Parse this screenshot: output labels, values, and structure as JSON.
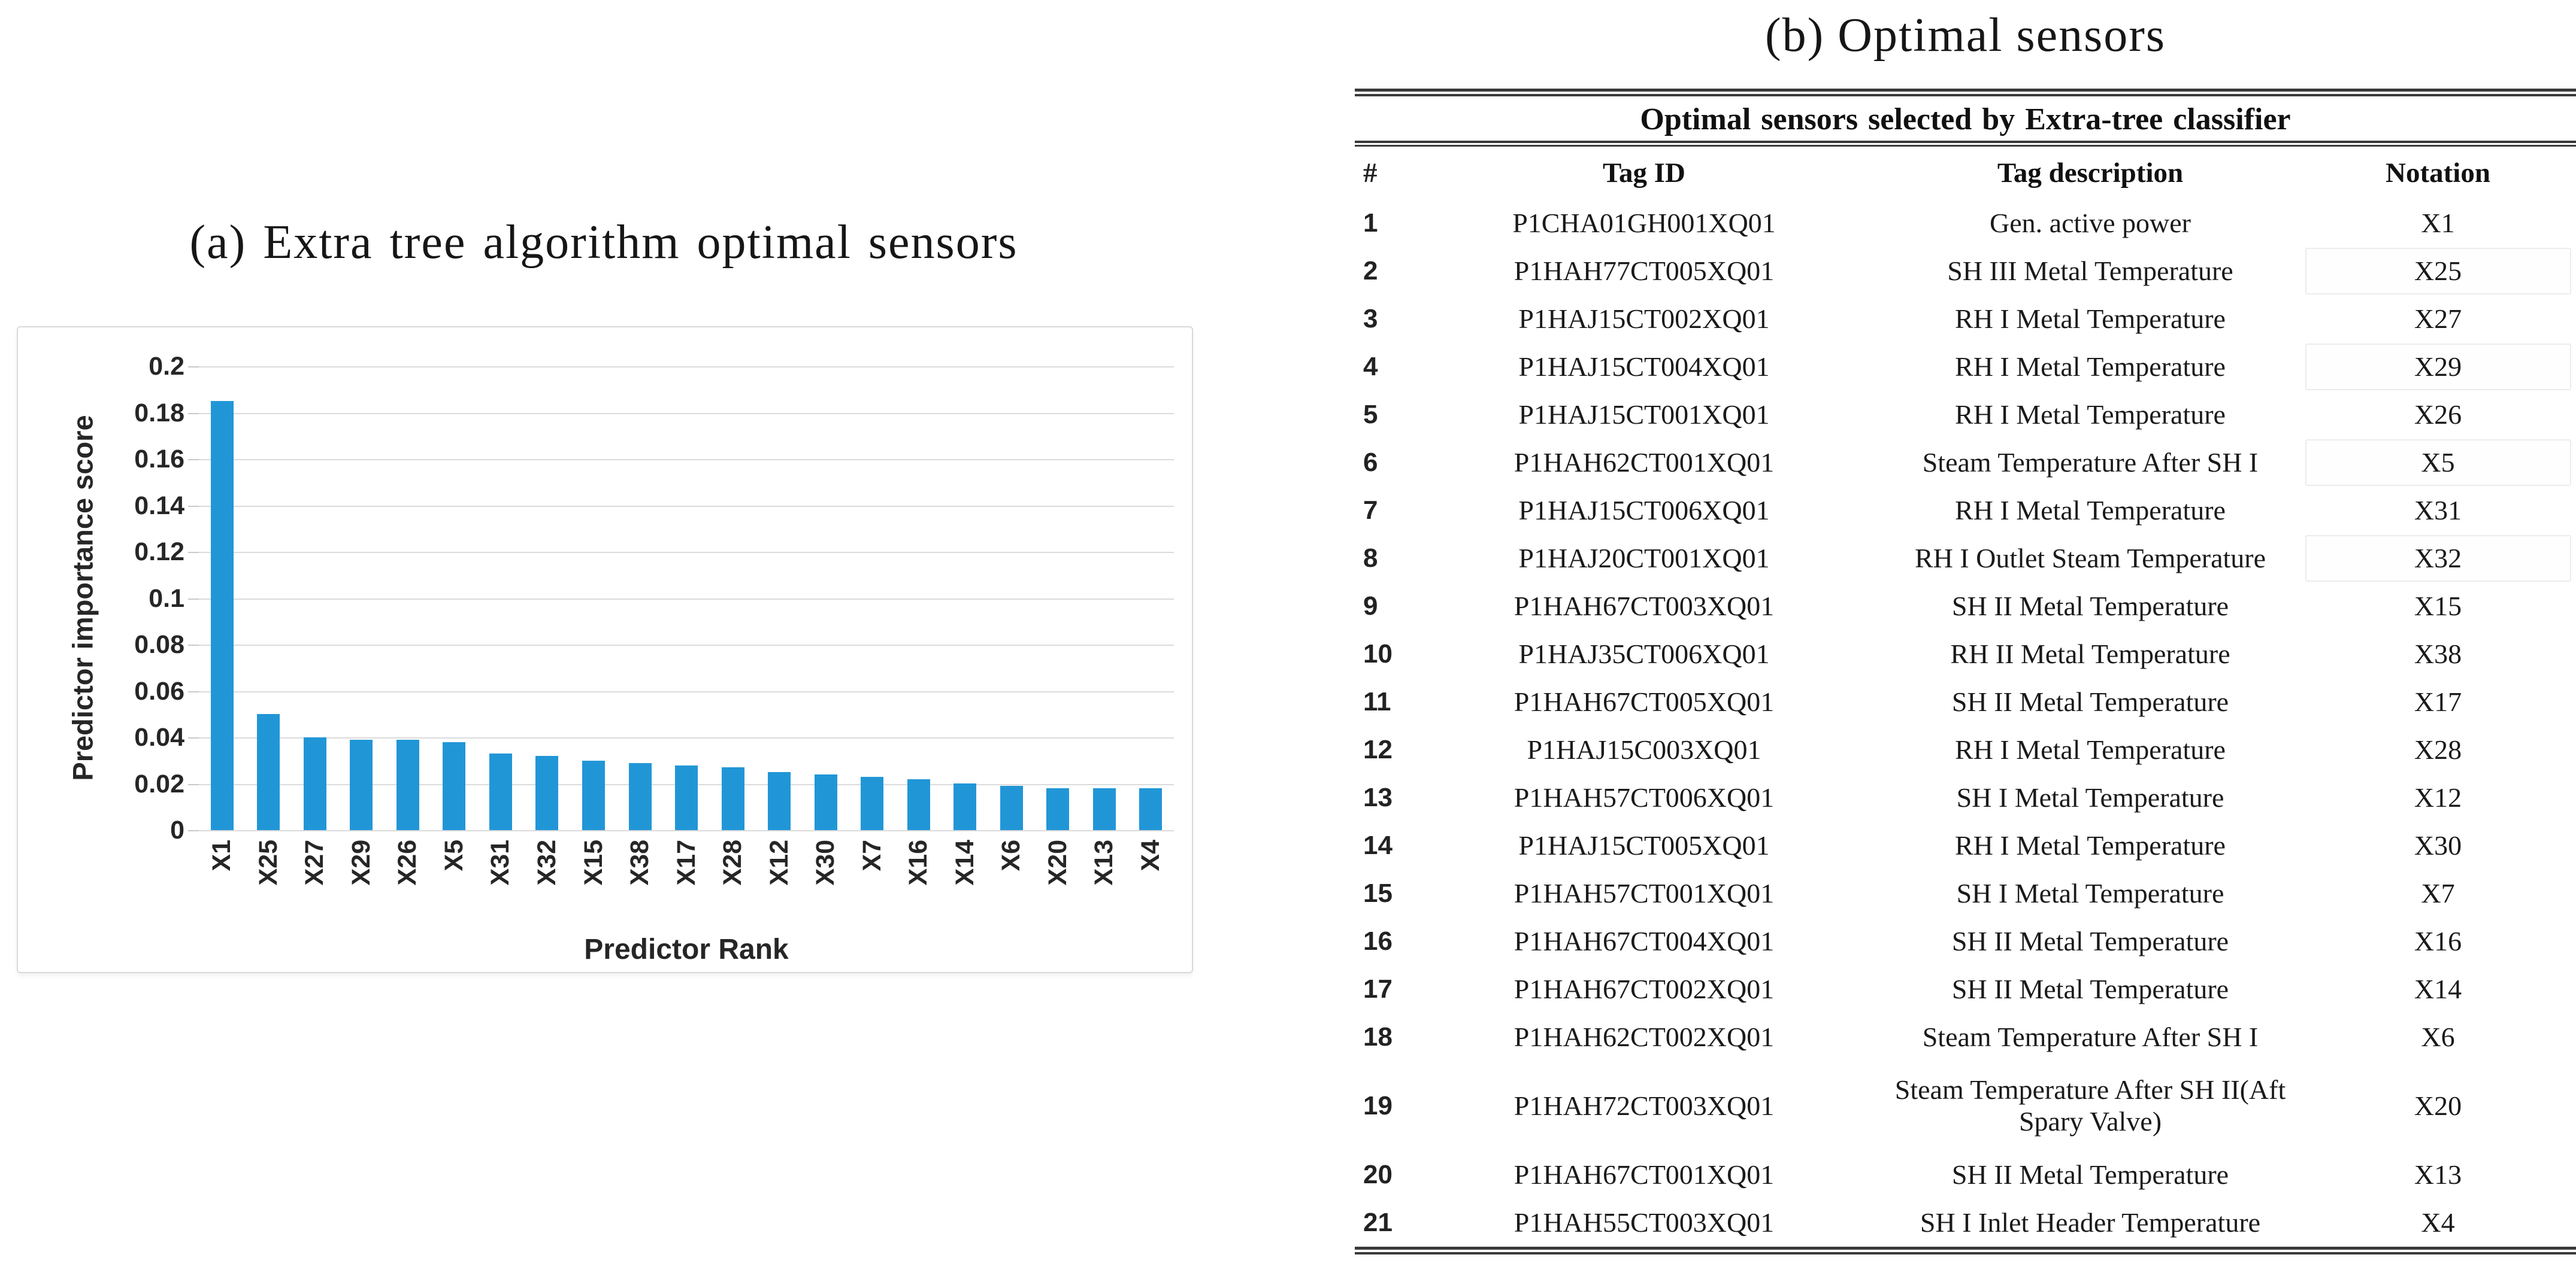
{
  "panel_a": {
    "title": "(a) Extra tree algorithm optimal sensors"
  },
  "chart_data": {
    "type": "bar",
    "title": "(a) Extra tree algorithm optimal sensors",
    "categories": [
      "X1",
      "X25",
      "X27",
      "X29",
      "X26",
      "X5",
      "X31",
      "X32",
      "X15",
      "X38",
      "X17",
      "X28",
      "X12",
      "X30",
      "X7",
      "X16",
      "X14",
      "X6",
      "X20",
      "X13",
      "X4"
    ],
    "values": [
      0.185,
      0.05,
      0.04,
      0.039,
      0.039,
      0.038,
      0.033,
      0.032,
      0.03,
      0.029,
      0.028,
      0.027,
      0.025,
      0.024,
      0.023,
      0.022,
      0.02,
      0.019,
      0.018,
      0.018,
      0.018
    ],
    "xlabel": "Predictor Rank",
    "ylabel": "Predictor importance score",
    "ylim": [
      0,
      0.2
    ],
    "y_ticks": [
      "0.2",
      "0.18",
      "0.16",
      "0.14",
      "0.12",
      "0.1",
      "0.08",
      "0.06",
      "0.04",
      "0.02",
      "0"
    ],
    "grid": true,
    "legend": "none",
    "bar_color": "#2196d7",
    "gridline_color": "#dbdbdb"
  },
  "panel_b": {
    "title": "(b) Optimal sensors",
    "table": {
      "caption": "Optimal sensors selected by Extra-tree classifier",
      "columns": [
        "#",
        "Tag ID",
        "Tag description",
        "Notation"
      ],
      "rows": [
        {
          "num": "1",
          "tag_id": "P1CHA01GH001XQ01",
          "description": "Gen. active power",
          "notation": "X1"
        },
        {
          "num": "2",
          "tag_id": "P1HAH77CT005XQ01",
          "description": "SH III Metal Temperature",
          "notation": "X25"
        },
        {
          "num": "3",
          "tag_id": "P1HAJ15CT002XQ01",
          "description": "RH I Metal Temperature",
          "notation": "X27"
        },
        {
          "num": "4",
          "tag_id": "P1HAJ15CT004XQ01",
          "description": "RH I Metal Temperature",
          "notation": "X29"
        },
        {
          "num": "5",
          "tag_id": "P1HAJ15CT001XQ01",
          "description": "RH I Metal Temperature",
          "notation": "X26"
        },
        {
          "num": "6",
          "tag_id": "P1HAH62CT001XQ01",
          "description": "Steam Temperature After SH I",
          "notation": "X5"
        },
        {
          "num": "7",
          "tag_id": "P1HAJ15CT006XQ01",
          "description": "RH I Metal Temperature",
          "notation": "X31"
        },
        {
          "num": "8",
          "tag_id": "P1HAJ20CT001XQ01",
          "description": "RH I Outlet Steam Temperature",
          "notation": "X32"
        },
        {
          "num": "9",
          "tag_id": "P1HAH67CT003XQ01",
          "description": "SH II Metal Temperature",
          "notation": "X15"
        },
        {
          "num": "10",
          "tag_id": "P1HAJ35CT006XQ01",
          "description": "RH II Metal Temperature",
          "notation": "X38"
        },
        {
          "num": "11",
          "tag_id": "P1HAH67CT005XQ01",
          "description": "SH II Metal Temperature",
          "notation": "X17"
        },
        {
          "num": "12",
          "tag_id": "P1HAJ15C003XQ01",
          "description": "RH I Metal Temperature",
          "notation": "X28"
        },
        {
          "num": "13",
          "tag_id": "P1HAH57CT006XQ01",
          "description": "SH I Metal Temperature",
          "notation": "X12"
        },
        {
          "num": "14",
          "tag_id": "P1HAJ15CT005XQ01",
          "description": "RH I Metal Temperature",
          "notation": "X30"
        },
        {
          "num": "15",
          "tag_id": "P1HAH57CT001XQ01",
          "description": "SH I Metal Temperature",
          "notation": "X7"
        },
        {
          "num": "16",
          "tag_id": "P1HAH67CT004XQ01",
          "description": "SH II Metal Temperature",
          "notation": "X16"
        },
        {
          "num": "17",
          "tag_id": "P1HAH67CT002XQ01",
          "description": "SH II Metal Temperature",
          "notation": "X14"
        },
        {
          "num": "18",
          "tag_id": "P1HAH62CT002XQ01",
          "description": "Steam Temperature After SH I",
          "notation": "X6"
        },
        {
          "num": "19",
          "tag_id": "P1HAH72CT003XQ01",
          "description": "Steam Temperature After SH II(Aft Spary Valve)",
          "notation": "X20"
        },
        {
          "num": "20",
          "tag_id": "P1HAH67CT001XQ01",
          "description": "SH II Metal Temperature",
          "notation": "X13"
        },
        {
          "num": "21",
          "tag_id": "P1HAH55CT003XQ01",
          "description": "SH I Inlet Header Temperature",
          "notation": "X4"
        }
      ],
      "boxed_notation_rows": [
        2,
        4,
        6,
        8
      ],
      "tall_rows": [
        19
      ]
    }
  }
}
